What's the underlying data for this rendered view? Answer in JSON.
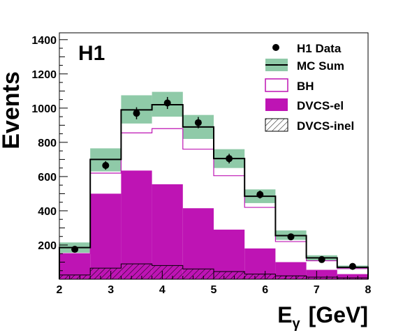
{
  "chart_data": {
    "type": "bar",
    "title": "",
    "xlabel": "E",
    "xlabel_subscript": "γ",
    "xlabel_unit": "[GeV]",
    "ylabel": "Events",
    "experiment_label": "H1",
    "xlim": [
      2,
      8
    ],
    "ylim": [
      0,
      1440
    ],
    "x_ticks": [
      2,
      3,
      4,
      5,
      6,
      7,
      8
    ],
    "y_ticks": [
      200,
      400,
      600,
      800,
      1000,
      1200,
      1400
    ],
    "bin_edges": [
      2.0,
      2.6,
      3.2,
      3.8,
      4.4,
      5.0,
      5.6,
      6.2,
      6.8,
      7.4,
      8.0
    ],
    "legend_position": "top-right",
    "series": [
      {
        "name": "H1 Data",
        "kind": "points",
        "x": [
          2.3,
          2.9,
          3.5,
          4.1,
          4.7,
          5.3,
          5.9,
          6.5,
          7.1,
          7.7
        ],
        "values": [
          175,
          665,
          970,
          1030,
          915,
          705,
          495,
          248,
          115,
          75
        ],
        "errors": [
          15,
          25,
          35,
          35,
          33,
          28,
          23,
          17,
          12,
          10
        ]
      },
      {
        "name": "MC Sum",
        "kind": "step",
        "values": [
          185,
          700,
          990,
          1020,
          890,
          705,
          485,
          255,
          125,
          70
        ],
        "band_low": [
          155,
          630,
          910,
          950,
          820,
          650,
          445,
          230,
          110,
          60
        ],
        "band_high": [
          215,
          765,
          1075,
          1095,
          960,
          760,
          525,
          285,
          140,
          80
        ]
      },
      {
        "name": "BH",
        "kind": "hist-outline",
        "values": [
          150,
          620,
          855,
          880,
          760,
          605,
          420,
          220,
          108,
          62
        ]
      },
      {
        "name": "DVCS-el",
        "kind": "hist-filled",
        "values": [
          150,
          500,
          635,
          555,
          415,
          290,
          180,
          100,
          55,
          30
        ]
      },
      {
        "name": "DVCS-inel",
        "kind": "hist-hatched",
        "values": [
          25,
          65,
          90,
          80,
          60,
          45,
          30,
          20,
          12,
          8
        ]
      }
    ],
    "colors": {
      "mc_band": "#8fcaa8",
      "dvcs_el": "#be14b4",
      "bh_outline": "#be14b4",
      "data": "#000000",
      "axis": "#000000"
    }
  }
}
